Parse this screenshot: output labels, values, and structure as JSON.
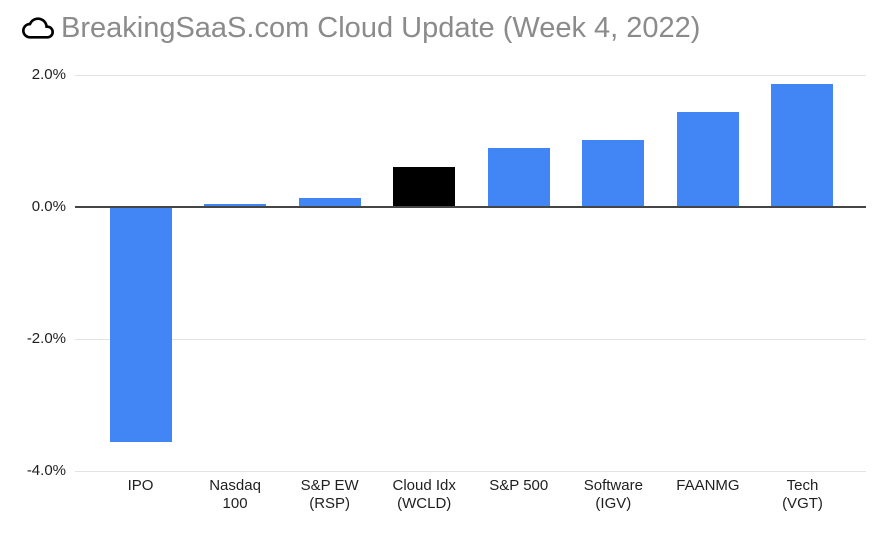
{
  "chart_data": {
    "type": "bar",
    "title": "BreakingSaaS.com Cloud Update (Week 4, 2022)",
    "categories": [
      "IPO",
      "Nasdaq\n100",
      "S&P EW\n(RSP)",
      "Cloud Idx\n(WCLD)",
      "S&P 500",
      "Software\n(IGV)",
      "FAANMG",
      "Tech\n(VGT)"
    ],
    "values": [
      -3.56,
      0.05,
      0.13,
      0.61,
      0.9,
      1.01,
      1.44,
      1.86
    ],
    "bar_colors": [
      "#4285f4",
      "#4285f4",
      "#4285f4",
      "#000000",
      "#4285f4",
      "#4285f4",
      "#4285f4",
      "#4285f4"
    ],
    "unit": "%",
    "xlabel": "",
    "ylabel": "",
    "ylim": [
      -4,
      2
    ],
    "yticks": [
      {
        "label": "2.0%",
        "value": 2
      },
      {
        "label": "0.0%",
        "value": 0
      },
      {
        "label": "-2.0%",
        "value": -2
      },
      {
        "label": "-4.0%",
        "value": -4
      }
    ],
    "grid": true,
    "legend": "none",
    "colors": {
      "default_bar": "#4285f4",
      "highlight_bar": "#000000",
      "gridline": "#e3e3e3",
      "zero_line": "#454545",
      "title_text": "#8b8b8b",
      "axis_text": "#1f1f1f",
      "background": "#ffffff"
    }
  }
}
